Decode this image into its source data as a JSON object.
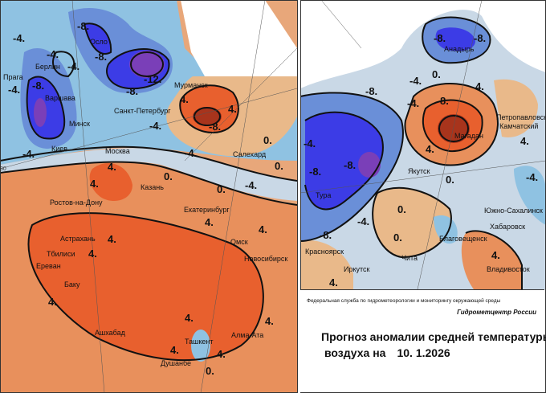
{
  "caption": {
    "agency": "Федеральная служба по гидрометеорологии и мониторингу окружающей среды",
    "center": "Гидрометцентр России",
    "title": "Прогноз аномалии средней температуры",
    "subtitle": "воздуха на",
    "date": "10. 1.2026"
  },
  "colors": {
    "deep_cold": "#7a3fb8",
    "cold_strong": "#3c3ce6",
    "cold": "#6a8fd8",
    "cool": "#8fc2e2",
    "near_zero": "#c9d8e6",
    "warm": "#e9b98a",
    "warmer": "#e8905c",
    "hot": "#e8602e",
    "very_hot": "#a8341c"
  },
  "left_map": {
    "cities": [
      "Осло",
      "Берлин",
      "Прага",
      "Варшава",
      "Минск",
      "Киев",
      "Москва",
      "Санкт-Петербург",
      "Мурманск",
      "Салехард",
      "Казань",
      "Ростов-на-Дону",
      "Екатеринбург",
      "Астрахань",
      "Омск",
      "Новосибирск",
      "Тбилиси",
      "Ереван",
      "Баку",
      "Ашхабад",
      "Ташкент",
      "Алма-Ата",
      "Душанбе"
    ],
    "contour_labels": [
      "-8.",
      "-4.",
      "-8.",
      "-4.",
      "-4.",
      "-8.",
      "-12.",
      "-8.",
      "-4.",
      "-4.",
      "-4.",
      "4.",
      "4.",
      "-8.",
      "0.",
      "0.",
      "-4.",
      "0.",
      "4.",
      "4.",
      "4.",
      "4.",
      "4.",
      "4.",
      "4.",
      "4.",
      "-4.",
      "0.",
      "4.",
      "4.",
      "4.",
      "0."
    ],
    "axis_tick": "30"
  },
  "right_map": {
    "cities": [
      "Анадырь",
      "Петропавловск",
      "Камчатский",
      "Магадан",
      "Якутск",
      "Тура",
      "Южно-Сахалинск",
      "Хабаровск",
      "Благовещенск",
      "Красноярск",
      "Чита",
      "Иркутск",
      "Владивосток"
    ],
    "contour_labels": [
      "-8.",
      "-8.",
      "-4.",
      "0.",
      "-4.",
      "4.",
      "8.",
      "4.",
      "-8.",
      "-4.",
      "-8.",
      "-8.",
      "4.",
      "0.",
      "0.",
      "-8.",
      "-4.",
      "0.",
      "4.",
      "4.",
      "-4."
    ]
  }
}
